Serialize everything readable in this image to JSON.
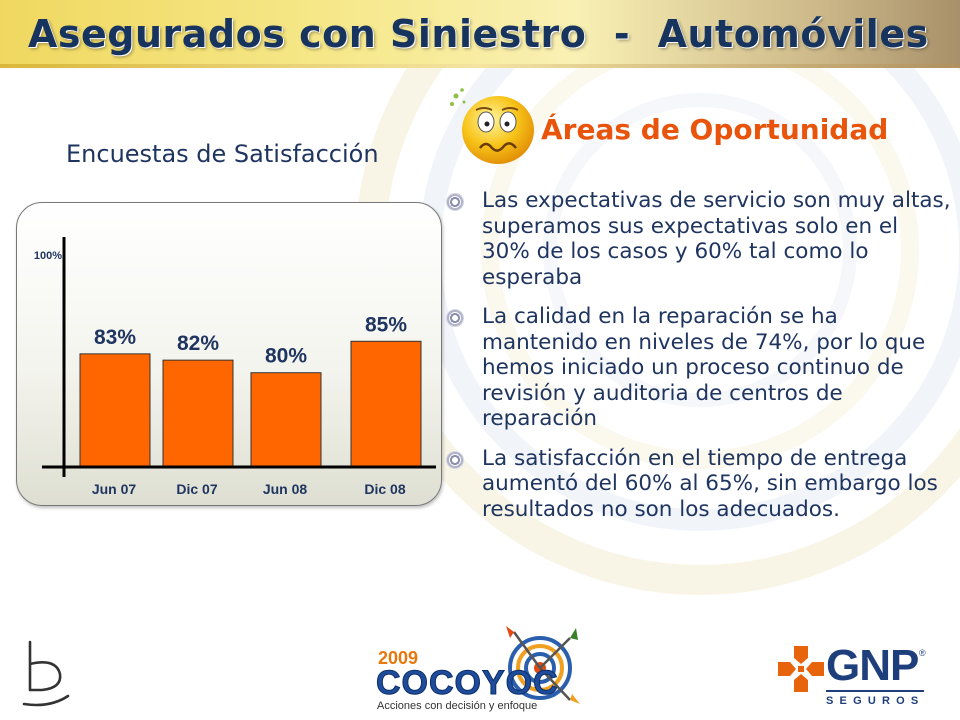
{
  "slide": {
    "title": "Asegurados con Siniestro  -  Automóviles"
  },
  "chart_data": {
    "type": "bar",
    "title": "Encuestas de Satisfacción",
    "categories": [
      "Jun 07",
      "Dic 07",
      "Jun 08",
      "Dic 08"
    ],
    "values": [
      83,
      82,
      80,
      85
    ],
    "value_labels": [
      "83%",
      "82%",
      "80%",
      "85%"
    ],
    "ylim": [
      65,
      100
    ],
    "y_max_label": "100%",
    "bar_color": "#ff6600",
    "grid": false,
    "legend": "none"
  },
  "opportunities": {
    "heading": "Áreas de Oportunidad",
    "heading_color": "#e8540c",
    "icon": "worried-face-icon",
    "items": [
      "Las expectativas de servicio son muy altas, superamos sus expectativas solo en el 30% de los casos y 60% tal como lo esperaba",
      "La calidad en la reparación se ha mantenido en niveles de 74%, por lo que hemos iniciado un proceso continuo de revisión y auditoria de centros de reparación",
      "La satisfacción en el tiempo de entrega aumentó del 60% al 65%, sin embargo los resultados no son los adecuados."
    ]
  },
  "footer": {
    "left_logo": "b-logo-icon",
    "event_year": "2009",
    "event_name": "COCOYOC",
    "event_tagline": "Acciones con decisión y enfoque",
    "company_name": "GNP",
    "company_reg": "®",
    "company_sub": "SEGUROS"
  },
  "colors": {
    "title_text": "#17345e",
    "body_text": "#1f3560",
    "accent_orange": "#ff6600"
  }
}
